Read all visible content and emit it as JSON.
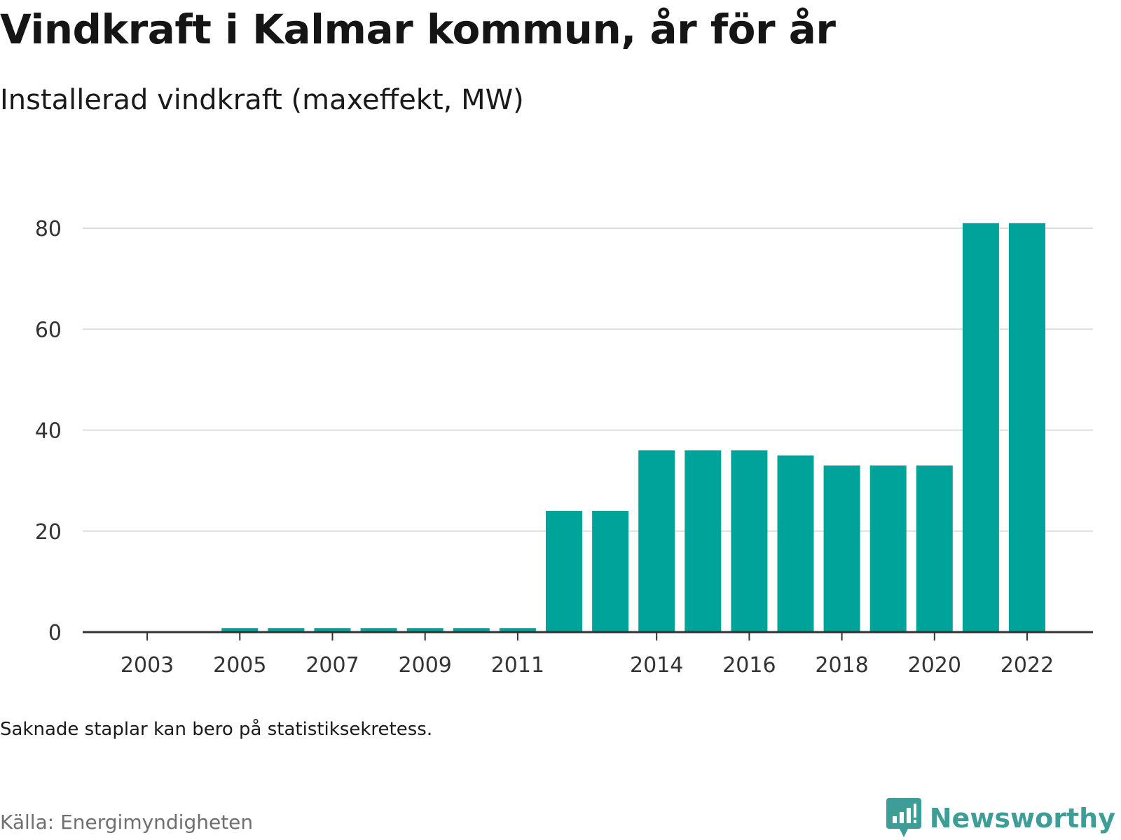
{
  "header": {
    "title": "Vindkraft i Kalmar kommun, år för år",
    "subtitle": "Installerad vindkraft (maxeffekt, MW)"
  },
  "footer": {
    "note": "Saknade staplar kan bero på statistiksekretess.",
    "source": "Källa: Energimyndigheten",
    "brand": "Newsworthy"
  },
  "colors": {
    "bar": "#00a39a",
    "grid": "#dddddd",
    "axis": "#333333",
    "brand": "#3e9e97"
  },
  "icons": {
    "brand_logo": "newsworthy-bar-chart-speech-bubble-icon"
  },
  "chart_data": {
    "type": "bar",
    "title": "Vindkraft i Kalmar kommun, år för år",
    "subtitle": "Installerad vindkraft (maxeffekt, MW)",
    "categories": [
      2002,
      2003,
      2004,
      2005,
      2006,
      2007,
      2008,
      2009,
      2010,
      2011,
      2012,
      2013,
      2014,
      2015,
      2016,
      2017,
      2018,
      2019,
      2020,
      2021,
      2022
    ],
    "values": [
      0,
      0,
      0,
      0.8,
      0.8,
      0.8,
      0.8,
      0.8,
      0.8,
      0.8,
      24,
      24,
      36,
      36,
      36,
      35,
      33,
      33,
      33,
      81,
      81
    ],
    "x_tick_labels": [
      "2003",
      "2005",
      "2007",
      "2009",
      "2011",
      "2014",
      "2016",
      "2018",
      "2020",
      "2022"
    ],
    "y_ticks": [
      0,
      20,
      40,
      60,
      80
    ],
    "ylim": [
      0,
      85
    ],
    "xlabel": "",
    "ylabel": "",
    "grid": true,
    "legend": "none"
  }
}
